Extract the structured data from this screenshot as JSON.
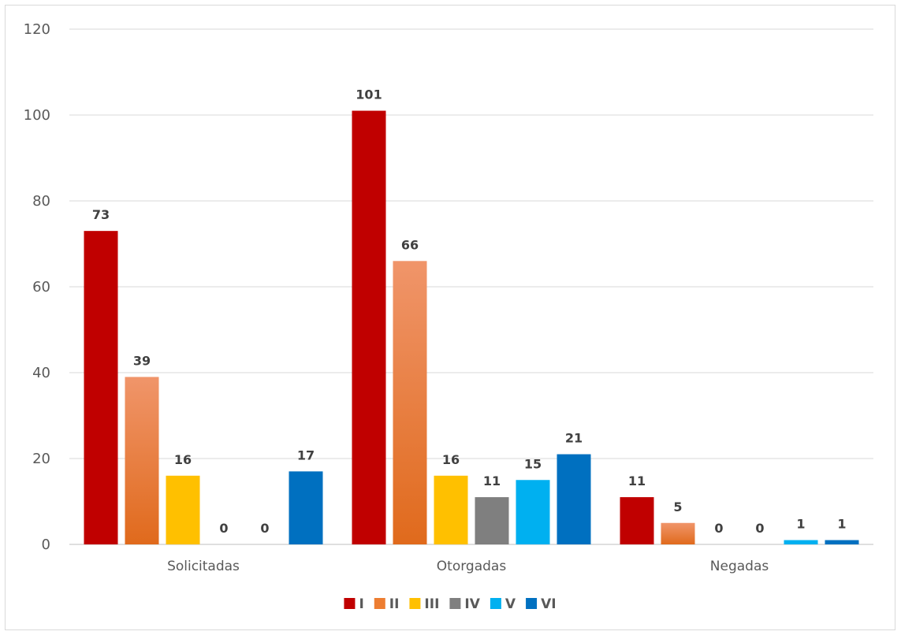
{
  "chart_data": {
    "type": "bar",
    "categories": [
      "Solicitadas",
      "Otorgadas",
      "Negadas"
    ],
    "series": [
      {
        "name": "I",
        "values": [
          73,
          101,
          11
        ],
        "color": "#c00000"
      },
      {
        "name": "II",
        "values": [
          39,
          66,
          5
        ],
        "color": "#ed7d31",
        "color_top": "#f0956a",
        "color_bottom": "#e06a1c"
      },
      {
        "name": "III",
        "values": [
          16,
          16,
          0
        ],
        "color": "#ffc000"
      },
      {
        "name": "IV",
        "values": [
          0,
          11,
          0
        ],
        "color": "#7f7f7f"
      },
      {
        "name": "V",
        "values": [
          0,
          15,
          1
        ],
        "color": "#00b0f0"
      },
      {
        "name": "VI",
        "values": [
          17,
          21,
          1
        ],
        "color": "#0070c0"
      }
    ],
    "y_ticks": [
      0,
      20,
      40,
      60,
      80,
      100,
      120
    ],
    "ylim": [
      0,
      120
    ],
    "grid": true,
    "legend": "bottom",
    "data_labels": true
  }
}
